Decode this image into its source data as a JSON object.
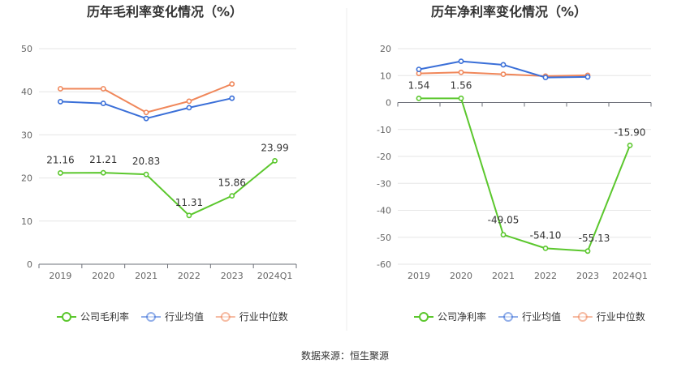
{
  "source": "数据来源：恒生聚源",
  "colors": {
    "company": "#5bc72d",
    "industry_avg": "#3a6fd8",
    "industry_median": "#f0875a"
  },
  "chart_data": [
    {
      "type": "line",
      "title": "历年毛利率变化情况（%）",
      "categories": [
        "2019",
        "2020",
        "2021",
        "2022",
        "2023",
        "2024Q1"
      ],
      "ylim": [
        0,
        50
      ],
      "yticks": [
        0,
        10,
        20,
        30,
        40,
        50
      ],
      "grid": true,
      "legend_placement": "bottom",
      "series": [
        {
          "name": "公司毛利率",
          "role": "company",
          "values": [
            21.16,
            21.21,
            20.83,
            11.31,
            15.86,
            23.99
          ],
          "labels": [
            "21.16",
            "21.21",
            "20.83",
            "11.31",
            "15.86",
            "23.99"
          ]
        },
        {
          "name": "行业均值",
          "role": "industry_avg",
          "values": [
            37.7,
            37.3,
            33.8,
            36.3,
            38.5,
            null
          ]
        },
        {
          "name": "行业中位数",
          "role": "industry_median",
          "values": [
            40.7,
            40.7,
            35.2,
            37.8,
            41.8,
            null
          ]
        }
      ]
    },
    {
      "type": "line",
      "title": "历年净利率变化情况（%）",
      "categories": [
        "2019",
        "2020",
        "2021",
        "2022",
        "2023",
        "2024Q1"
      ],
      "ylim": [
        -60,
        20
      ],
      "yticks": [
        -60,
        -50,
        -40,
        -30,
        -20,
        -10,
        0,
        10,
        20
      ],
      "grid": true,
      "legend_placement": "bottom",
      "series": [
        {
          "name": "公司净利率",
          "role": "company",
          "values": [
            1.54,
            1.56,
            -49.05,
            -54.1,
            -55.13,
            -15.9
          ],
          "labels": [
            "1.54",
            "1.56",
            "-49.05",
            "-54.10",
            "-55.13",
            "-15.90"
          ]
        },
        {
          "name": "行业均值",
          "role": "industry_avg",
          "values": [
            12.3,
            15.3,
            14.0,
            9.3,
            9.5,
            null
          ]
        },
        {
          "name": "行业中位数",
          "role": "industry_median",
          "values": [
            10.8,
            11.2,
            10.5,
            9.8,
            10.1,
            null
          ]
        }
      ]
    }
  ]
}
